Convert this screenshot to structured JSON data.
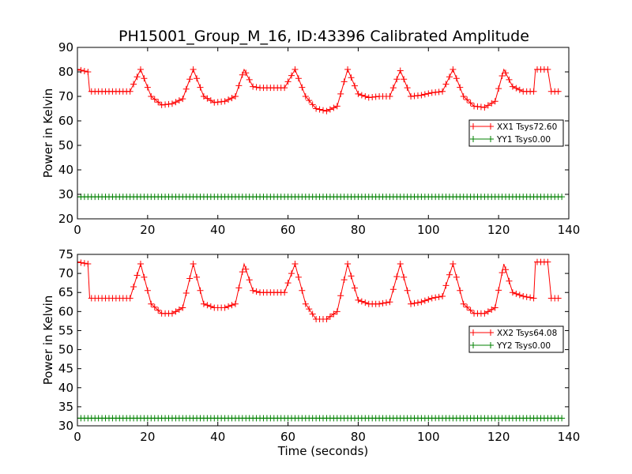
{
  "title": "PH15001_Group_M_16, ID:43396 Calibrated Amplitude",
  "xlabel": "Time (seconds)",
  "colors": {
    "xx": "#ff0000",
    "yy": "#008000"
  },
  "chart_data": [
    {
      "type": "line",
      "title": "PH15001_Group_M_16, ID:43396 Calibrated Amplitude",
      "xlabel": "",
      "ylabel": "Power in Kelvin",
      "xlim": [
        0,
        140
      ],
      "ylim": [
        20,
        90
      ],
      "xticks": [
        "0",
        "20",
        "40",
        "60",
        "80",
        "100",
        "120",
        "140"
      ],
      "yticks": [
        "20",
        "30",
        "40",
        "50",
        "60",
        "70",
        "80",
        "90"
      ],
      "legend_position": "center-right",
      "series": [
        {
          "name": "XX1 Tsys72.60",
          "color": "#ff0000",
          "x": [
            0,
            3,
            3.5,
            9,
            15,
            18,
            21,
            24,
            27,
            30,
            33,
            36,
            39,
            42,
            45,
            47.5,
            50,
            52,
            56,
            59,
            62,
            65,
            68,
            71,
            74,
            77,
            80,
            83,
            86,
            89,
            92,
            95,
            98,
            101,
            104,
            107,
            110,
            113,
            116,
            119,
            121.5,
            124,
            127,
            130,
            130.5,
            134,
            135,
            137.5
          ],
          "y": [
            81,
            80,
            72,
            72,
            72,
            81,
            70,
            66.5,
            67,
            69,
            81,
            70,
            67.5,
            68,
            70,
            81,
            74,
            73.5,
            73.5,
            73.5,
            81,
            70,
            65,
            64,
            66,
            81,
            71,
            69.5,
            70,
            70,
            80.5,
            70,
            70.5,
            71.5,
            72,
            81,
            70,
            66,
            65.5,
            68,
            81,
            74,
            72,
            72,
            81,
            81,
            72,
            72
          ]
        },
        {
          "name": "YY1 Tsys0.00",
          "color": "#008000",
          "x": [
            0,
            138
          ],
          "y": [
            29,
            29
          ]
        }
      ]
    },
    {
      "type": "line",
      "xlabel": "Time (seconds)",
      "ylabel": "Power in Kelvin",
      "xlim": [
        0,
        140
      ],
      "ylim": [
        30,
        75
      ],
      "xticks": [
        "0",
        "20",
        "40",
        "60",
        "80",
        "100",
        "120",
        "140"
      ],
      "yticks": [
        "30",
        "35",
        "40",
        "45",
        "50",
        "55",
        "60",
        "65",
        "70",
        "75"
      ],
      "legend_position": "center-right",
      "series": [
        {
          "name": "XX2 Tsys64.08",
          "color": "#ff0000",
          "x": [
            0,
            3,
            3.5,
            9,
            15,
            18,
            21,
            24,
            27,
            30,
            33,
            36,
            39,
            42,
            45,
            47.5,
            50,
            52,
            56,
            59,
            62,
            65,
            68,
            71,
            74,
            77,
            80,
            83,
            86,
            89,
            92,
            95,
            98,
            101,
            104,
            107,
            110,
            113,
            116,
            119,
            121.5,
            124,
            127,
            130,
            130.5,
            134,
            135,
            137.5
          ],
          "y": [
            73,
            72.5,
            63.5,
            63.5,
            63.5,
            72.5,
            62,
            59.5,
            59.5,
            61,
            72.5,
            62,
            61,
            61,
            62,
            72.5,
            65.5,
            65,
            65,
            65,
            72.5,
            62,
            58,
            58,
            60,
            72.5,
            63,
            62,
            62,
            62.5,
            72.5,
            62,
            62.5,
            63.5,
            64,
            72.5,
            62,
            59.5,
            59.5,
            61,
            72.5,
            65,
            64,
            63.5,
            73,
            73,
            63.5,
            63.5
          ]
        },
        {
          "name": "YY2 Tsys0.00",
          "color": "#008000",
          "x": [
            0,
            138
          ],
          "y": [
            32,
            32
          ]
        }
      ]
    }
  ]
}
